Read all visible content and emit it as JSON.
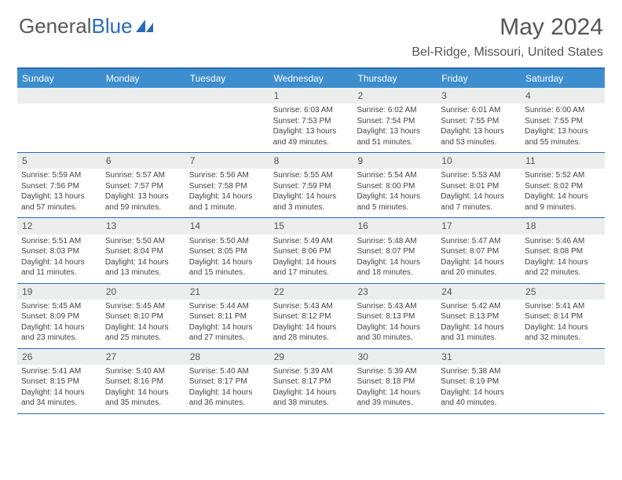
{
  "logo": {
    "text_gray": "General",
    "text_blue": "Blue"
  },
  "header": {
    "month_title": "May 2024",
    "location": "Bel-Ridge, Missouri, United States"
  },
  "colors": {
    "header_bar": "#3d8ecf",
    "rule": "#2a6bb5",
    "daynum_bg": "#eceded",
    "text": "#555555"
  },
  "day_names": [
    "Sunday",
    "Monday",
    "Tuesday",
    "Wednesday",
    "Thursday",
    "Friday",
    "Saturday"
  ],
  "weeks": [
    [
      {
        "n": "",
        "sr": "",
        "ss": "",
        "dl": ""
      },
      {
        "n": "",
        "sr": "",
        "ss": "",
        "dl": ""
      },
      {
        "n": "",
        "sr": "",
        "ss": "",
        "dl": ""
      },
      {
        "n": "1",
        "sr": "Sunrise: 6:03 AM",
        "ss": "Sunset: 7:53 PM",
        "dl": "Daylight: 13 hours and 49 minutes."
      },
      {
        "n": "2",
        "sr": "Sunrise: 6:02 AM",
        "ss": "Sunset: 7:54 PM",
        "dl": "Daylight: 13 hours and 51 minutes."
      },
      {
        "n": "3",
        "sr": "Sunrise: 6:01 AM",
        "ss": "Sunset: 7:55 PM",
        "dl": "Daylight: 13 hours and 53 minutes."
      },
      {
        "n": "4",
        "sr": "Sunrise: 6:00 AM",
        "ss": "Sunset: 7:55 PM",
        "dl": "Daylight: 13 hours and 55 minutes."
      }
    ],
    [
      {
        "n": "5",
        "sr": "Sunrise: 5:59 AM",
        "ss": "Sunset: 7:56 PM",
        "dl": "Daylight: 13 hours and 57 minutes."
      },
      {
        "n": "6",
        "sr": "Sunrise: 5:57 AM",
        "ss": "Sunset: 7:57 PM",
        "dl": "Daylight: 13 hours and 59 minutes."
      },
      {
        "n": "7",
        "sr": "Sunrise: 5:56 AM",
        "ss": "Sunset: 7:58 PM",
        "dl": "Daylight: 14 hours and 1 minute."
      },
      {
        "n": "8",
        "sr": "Sunrise: 5:55 AM",
        "ss": "Sunset: 7:59 PM",
        "dl": "Daylight: 14 hours and 3 minutes."
      },
      {
        "n": "9",
        "sr": "Sunrise: 5:54 AM",
        "ss": "Sunset: 8:00 PM",
        "dl": "Daylight: 14 hours and 5 minutes."
      },
      {
        "n": "10",
        "sr": "Sunrise: 5:53 AM",
        "ss": "Sunset: 8:01 PM",
        "dl": "Daylight: 14 hours and 7 minutes."
      },
      {
        "n": "11",
        "sr": "Sunrise: 5:52 AM",
        "ss": "Sunset: 8:02 PM",
        "dl": "Daylight: 14 hours and 9 minutes."
      }
    ],
    [
      {
        "n": "12",
        "sr": "Sunrise: 5:51 AM",
        "ss": "Sunset: 8:03 PM",
        "dl": "Daylight: 14 hours and 11 minutes."
      },
      {
        "n": "13",
        "sr": "Sunrise: 5:50 AM",
        "ss": "Sunset: 8:04 PM",
        "dl": "Daylight: 14 hours and 13 minutes."
      },
      {
        "n": "14",
        "sr": "Sunrise: 5:50 AM",
        "ss": "Sunset: 8:05 PM",
        "dl": "Daylight: 14 hours and 15 minutes."
      },
      {
        "n": "15",
        "sr": "Sunrise: 5:49 AM",
        "ss": "Sunset: 8:06 PM",
        "dl": "Daylight: 14 hours and 17 minutes."
      },
      {
        "n": "16",
        "sr": "Sunrise: 5:48 AM",
        "ss": "Sunset: 8:07 PM",
        "dl": "Daylight: 14 hours and 18 minutes."
      },
      {
        "n": "17",
        "sr": "Sunrise: 5:47 AM",
        "ss": "Sunset: 8:07 PM",
        "dl": "Daylight: 14 hours and 20 minutes."
      },
      {
        "n": "18",
        "sr": "Sunrise: 5:46 AM",
        "ss": "Sunset: 8:08 PM",
        "dl": "Daylight: 14 hours and 22 minutes."
      }
    ],
    [
      {
        "n": "19",
        "sr": "Sunrise: 5:45 AM",
        "ss": "Sunset: 8:09 PM",
        "dl": "Daylight: 14 hours and 23 minutes."
      },
      {
        "n": "20",
        "sr": "Sunrise: 5:45 AM",
        "ss": "Sunset: 8:10 PM",
        "dl": "Daylight: 14 hours and 25 minutes."
      },
      {
        "n": "21",
        "sr": "Sunrise: 5:44 AM",
        "ss": "Sunset: 8:11 PM",
        "dl": "Daylight: 14 hours and 27 minutes."
      },
      {
        "n": "22",
        "sr": "Sunrise: 5:43 AM",
        "ss": "Sunset: 8:12 PM",
        "dl": "Daylight: 14 hours and 28 minutes."
      },
      {
        "n": "23",
        "sr": "Sunrise: 5:43 AM",
        "ss": "Sunset: 8:13 PM",
        "dl": "Daylight: 14 hours and 30 minutes."
      },
      {
        "n": "24",
        "sr": "Sunrise: 5:42 AM",
        "ss": "Sunset: 8:13 PM",
        "dl": "Daylight: 14 hours and 31 minutes."
      },
      {
        "n": "25",
        "sr": "Sunrise: 5:41 AM",
        "ss": "Sunset: 8:14 PM",
        "dl": "Daylight: 14 hours and 32 minutes."
      }
    ],
    [
      {
        "n": "26",
        "sr": "Sunrise: 5:41 AM",
        "ss": "Sunset: 8:15 PM",
        "dl": "Daylight: 14 hours and 34 minutes."
      },
      {
        "n": "27",
        "sr": "Sunrise: 5:40 AM",
        "ss": "Sunset: 8:16 PM",
        "dl": "Daylight: 14 hours and 35 minutes."
      },
      {
        "n": "28",
        "sr": "Sunrise: 5:40 AM",
        "ss": "Sunset: 8:17 PM",
        "dl": "Daylight: 14 hours and 36 minutes."
      },
      {
        "n": "29",
        "sr": "Sunrise: 5:39 AM",
        "ss": "Sunset: 8:17 PM",
        "dl": "Daylight: 14 hours and 38 minutes."
      },
      {
        "n": "30",
        "sr": "Sunrise: 5:39 AM",
        "ss": "Sunset: 8:18 PM",
        "dl": "Daylight: 14 hours and 39 minutes."
      },
      {
        "n": "31",
        "sr": "Sunrise: 5:38 AM",
        "ss": "Sunset: 8:19 PM",
        "dl": "Daylight: 14 hours and 40 minutes."
      },
      {
        "n": "",
        "sr": "",
        "ss": "",
        "dl": ""
      }
    ]
  ]
}
